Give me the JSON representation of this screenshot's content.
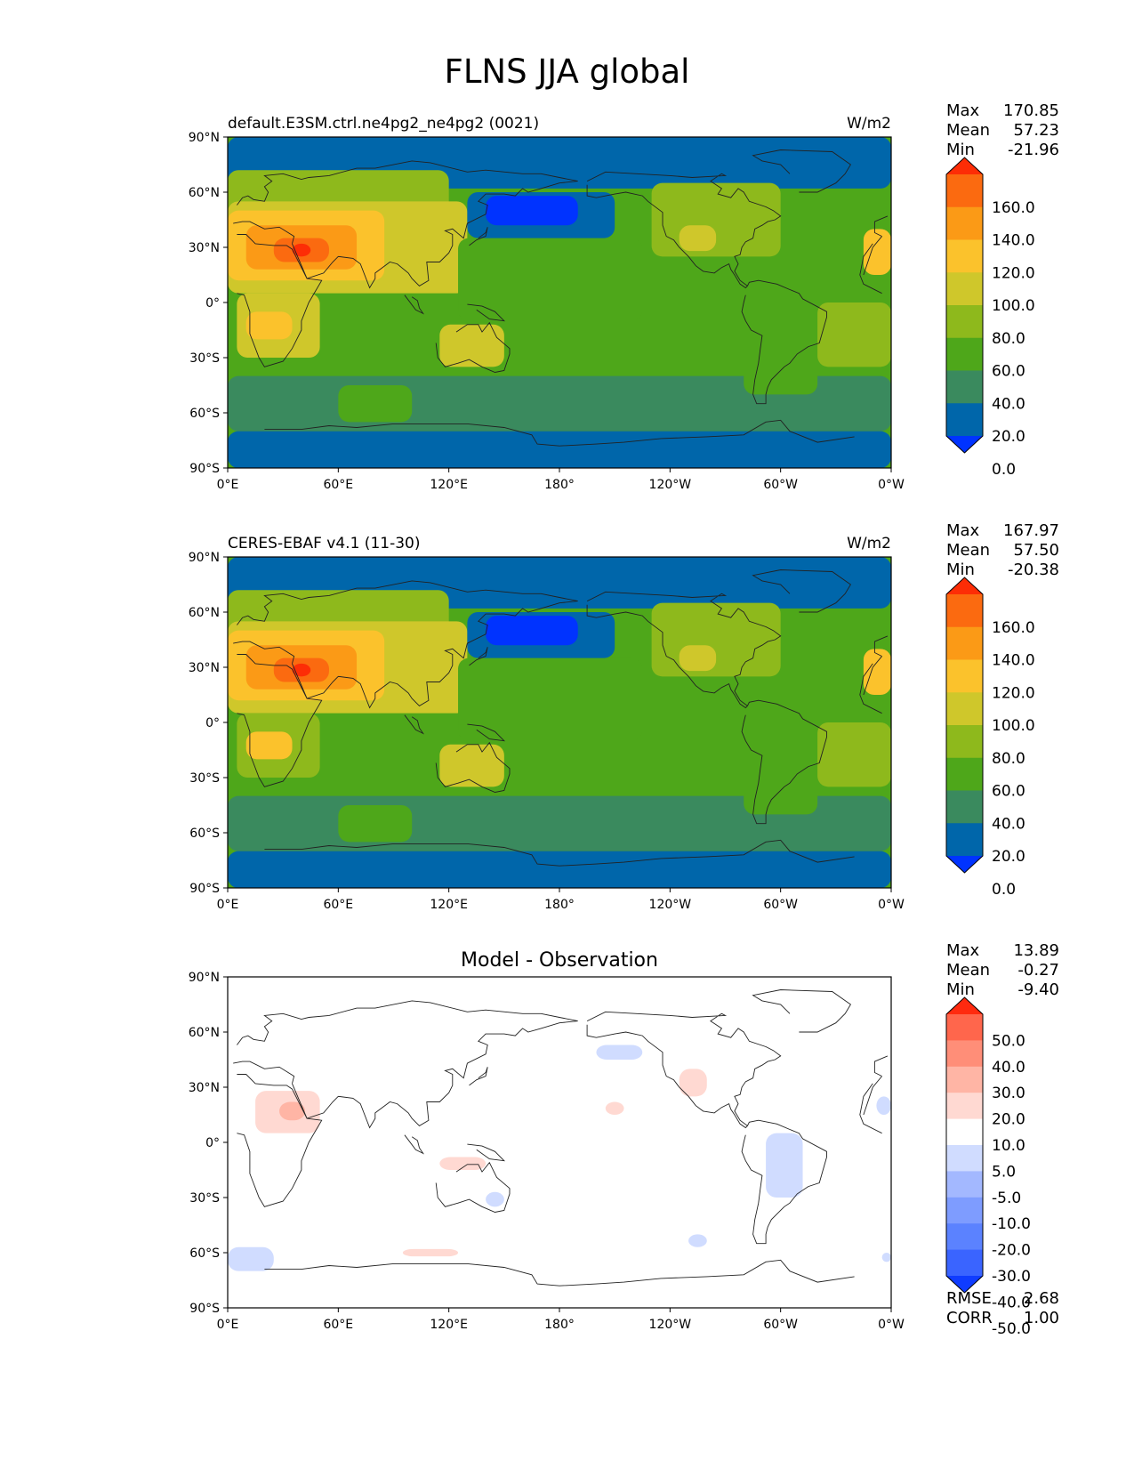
{
  "figure": {
    "title": "FLNS JJA global"
  },
  "colors": {
    "abs_levels": [
      "#0033ff",
      "#0066aa",
      "#3a8a5e",
      "#4ea71a",
      "#8eb91c",
      "#cfc72b",
      "#fbc22c",
      "#fb9a16",
      "#fb6a10",
      "#fd2d06"
    ],
    "diff_levels": [
      "#0f3cff",
      "#3a64ff",
      "#5b82ff",
      "#7e9cff",
      "#a3b8ff",
      "#d0dcff",
      "#ffffff",
      "#ffd9d2",
      "#ffb5a5",
      "#ff8e78",
      "#ff664c",
      "#ff2a0f"
    ],
    "coast": "#222222"
  },
  "axes": {
    "lat_ticks": [
      "90°N",
      "60°N",
      "30°N",
      "0°",
      "30°S",
      "60°S",
      "90°S"
    ],
    "lon_ticks": [
      "0°E",
      "60°E",
      "120°E",
      "180°",
      "120°W",
      "60°W",
      "0°W"
    ]
  },
  "panels": [
    {
      "left_title": "default.E3SM.ctrl.ne4pg2_ne4pg2 (0021)",
      "units": "W/m2",
      "stats": [
        {
          "label": "Max",
          "value": "170.85"
        },
        {
          "label": "Mean",
          "value": "57.23"
        },
        {
          "label": "Min",
          "value": "-21.96"
        }
      ],
      "colorbar_labels": [
        "160.0",
        "140.0",
        "120.0",
        "100.0",
        "80.0",
        "60.0",
        "40.0",
        "20.0",
        "0.0"
      ]
    },
    {
      "left_title": "CERES-EBAF v4.1 (11-30)",
      "units": "W/m2",
      "stats": [
        {
          "label": "Max",
          "value": "167.97"
        },
        {
          "label": "Mean",
          "value": "57.50"
        },
        {
          "label": "Min",
          "value": "-20.38"
        }
      ],
      "colorbar_labels": [
        "160.0",
        "140.0",
        "120.0",
        "100.0",
        "80.0",
        "60.0",
        "40.0",
        "20.0",
        "0.0"
      ]
    },
    {
      "center_title": "Model - Observation",
      "stats": [
        {
          "label": "Max",
          "value": "13.89"
        },
        {
          "label": "Mean",
          "value": "-0.27"
        },
        {
          "label": "Min",
          "value": "-9.40"
        }
      ],
      "colorbar_labels": [
        "50.0",
        "40.0",
        "30.0",
        "20.0",
        "10.0",
        "5.0",
        "-5.0",
        "-10.0",
        "-20.0",
        "-30.0",
        "-40.0",
        "-50.0"
      ],
      "extra_stats": [
        {
          "label": "RMSE",
          "value": "2.68"
        },
        {
          "label": "CORR",
          "value": "1.00"
        }
      ]
    }
  ],
  "chart_data": [
    {
      "type": "heatmap",
      "title": "default.E3SM.ctrl.ne4pg2_ne4pg2 (0021)",
      "units": "W/m2",
      "xlim": [
        0,
        360
      ],
      "ylim": [
        -90,
        90
      ],
      "levels": [
        0,
        20,
        40,
        60,
        80,
        100,
        120,
        140,
        160
      ],
      "extend": "both",
      "field_regions": [
        {
          "lon": [
            0,
            360
          ],
          "lat": [
            -90,
            90
          ],
          "value": 50
        },
        {
          "lon": [
            0,
            360
          ],
          "lat": [
            -90,
            -70
          ],
          "value": 10
        },
        {
          "lon": [
            0,
            360
          ],
          "lat": [
            -70,
            -40
          ],
          "value": 38
        },
        {
          "lon": [
            60,
            100
          ],
          "lat": [
            -65,
            -45
          ],
          "value": 55
        },
        {
          "lon": [
            0,
            360
          ],
          "lat": [
            62,
            90
          ],
          "value": 12
        },
        {
          "lon": [
            0,
            120
          ],
          "lat": [
            40,
            72
          ],
          "value": 62
        },
        {
          "lon": [
            0,
            130
          ],
          "lat": [
            5,
            55
          ],
          "value": 80
        },
        {
          "lon": [
            0,
            85
          ],
          "lat": [
            12,
            50
          ],
          "value": 100
        },
        {
          "lon": [
            10,
            70
          ],
          "lat": [
            18,
            42
          ],
          "value": 125
        },
        {
          "lon": [
            25,
            55
          ],
          "lat": [
            22,
            35
          ],
          "value": 150
        },
        {
          "lon": [
            35,
            45
          ],
          "lat": [
            25,
            32
          ],
          "value": 165
        },
        {
          "lon": [
            5,
            50
          ],
          "lat": [
            -30,
            5
          ],
          "value": 80
        },
        {
          "lon": [
            10,
            35
          ],
          "lat": [
            -20,
            -5
          ],
          "value": 105
        },
        {
          "lon": [
            115,
            150
          ],
          "lat": [
            -35,
            -12
          ],
          "value": 85
        },
        {
          "lon": [
            125,
            225
          ],
          "lat": [
            -10,
            35
          ],
          "value": 42
        },
        {
          "lon": [
            130,
            210
          ],
          "lat": [
            35,
            60
          ],
          "value": 10
        },
        {
          "lon": [
            140,
            190
          ],
          "lat": [
            42,
            58
          ],
          "value": -5
        },
        {
          "lon": [
            230,
            300
          ],
          "lat": [
            25,
            65
          ],
          "value": 70
        },
        {
          "lon": [
            245,
            265
          ],
          "lat": [
            28,
            42
          ],
          "value": 90
        },
        {
          "lon": [
            280,
            320
          ],
          "lat": [
            -50,
            10
          ],
          "value": 55
        },
        {
          "lon": [
            320,
            360
          ],
          "lat": [
            -35,
            0
          ],
          "value": 78
        },
        {
          "lon": [
            345,
            360
          ],
          "lat": [
            15,
            40
          ],
          "value": 110
        }
      ]
    },
    {
      "type": "heatmap",
      "title": "CERES-EBAF v4.1 (11-30)",
      "units": "W/m2",
      "xlim": [
        0,
        360
      ],
      "ylim": [
        -90,
        90
      ],
      "levels": [
        0,
        20,
        40,
        60,
        80,
        100,
        120,
        140,
        160
      ],
      "extend": "both",
      "field_regions": [
        {
          "lon": [
            0,
            360
          ],
          "lat": [
            -90,
            90
          ],
          "value": 50
        },
        {
          "lon": [
            0,
            360
          ],
          "lat": [
            -90,
            -70
          ],
          "value": 10
        },
        {
          "lon": [
            0,
            360
          ],
          "lat": [
            -70,
            -40
          ],
          "value": 36
        },
        {
          "lon": [
            60,
            100
          ],
          "lat": [
            -65,
            -45
          ],
          "value": 55
        },
        {
          "lon": [
            0,
            360
          ],
          "lat": [
            62,
            90
          ],
          "value": 12
        },
        {
          "lon": [
            0,
            120
          ],
          "lat": [
            40,
            72
          ],
          "value": 62
        },
        {
          "lon": [
            0,
            130
          ],
          "lat": [
            5,
            55
          ],
          "value": 80
        },
        {
          "lon": [
            0,
            85
          ],
          "lat": [
            12,
            50
          ],
          "value": 100
        },
        {
          "lon": [
            10,
            70
          ],
          "lat": [
            18,
            42
          ],
          "value": 125
        },
        {
          "lon": [
            25,
            55
          ],
          "lat": [
            22,
            35
          ],
          "value": 145
        },
        {
          "lon": [
            35,
            45
          ],
          "lat": [
            25,
            32
          ],
          "value": 162
        },
        {
          "lon": [
            5,
            50
          ],
          "lat": [
            -30,
            5
          ],
          "value": 78
        },
        {
          "lon": [
            10,
            35
          ],
          "lat": [
            -20,
            -5
          ],
          "value": 102
        },
        {
          "lon": [
            115,
            150
          ],
          "lat": [
            -35,
            -12
          ],
          "value": 82
        },
        {
          "lon": [
            125,
            225
          ],
          "lat": [
            -10,
            35
          ],
          "value": 45
        },
        {
          "lon": [
            130,
            210
          ],
          "lat": [
            35,
            60
          ],
          "value": 10
        },
        {
          "lon": [
            140,
            190
          ],
          "lat": [
            42,
            58
          ],
          "value": -5
        },
        {
          "lon": [
            230,
            300
          ],
          "lat": [
            25,
            65
          ],
          "value": 68
        },
        {
          "lon": [
            245,
            265
          ],
          "lat": [
            28,
            42
          ],
          "value": 85
        },
        {
          "lon": [
            280,
            320
          ],
          "lat": [
            -50,
            10
          ],
          "value": 55
        },
        {
          "lon": [
            320,
            360
          ],
          "lat": [
            -35,
            0
          ],
          "value": 78
        },
        {
          "lon": [
            345,
            360
          ],
          "lat": [
            15,
            40
          ],
          "value": 105
        }
      ]
    },
    {
      "type": "heatmap",
      "title": "Model - Observation",
      "xlim": [
        0,
        360
      ],
      "ylim": [
        -90,
        90
      ],
      "levels": [
        -50,
        -40,
        -30,
        -20,
        -10,
        -5,
        5,
        10,
        20,
        30,
        40,
        50
      ],
      "extend": "both",
      "field_regions": [
        {
          "lon": [
            0,
            360
          ],
          "lat": [
            -90,
            90
          ],
          "value": 0
        },
        {
          "lon": [
            15,
            50
          ],
          "lat": [
            5,
            28
          ],
          "value": 7
        },
        {
          "lon": [
            28,
            42
          ],
          "lat": [
            12,
            22
          ],
          "value": 12
        },
        {
          "lon": [
            115,
            140
          ],
          "lat": [
            -15,
            -8
          ],
          "value": 7
        },
        {
          "lon": [
            95,
            125
          ],
          "lat": [
            -62,
            -58
          ],
          "value": 6
        },
        {
          "lon": [
            205,
            215
          ],
          "lat": [
            15,
            22
          ],
          "value": 7
        },
        {
          "lon": [
            245,
            260
          ],
          "lat": [
            25,
            40
          ],
          "value": 7
        },
        {
          "lon": [
            200,
            225
          ],
          "lat": [
            45,
            53
          ],
          "value": -6
        },
        {
          "lon": [
            0,
            25
          ],
          "lat": [
            -70,
            -57
          ],
          "value": -6
        },
        {
          "lon": [
            140,
            150
          ],
          "lat": [
            -35,
            -27
          ],
          "value": -6
        },
        {
          "lon": [
            250,
            260
          ],
          "lat": [
            -57,
            -50
          ],
          "value": -6
        },
        {
          "lon": [
            292,
            312
          ],
          "lat": [
            -30,
            5
          ],
          "value": -7
        },
        {
          "lon": [
            352,
            360
          ],
          "lat": [
            15,
            25
          ],
          "value": -6
        },
        {
          "lon": [
            355,
            360
          ],
          "lat": [
            -65,
            -60
          ],
          "value": -6
        }
      ]
    }
  ]
}
